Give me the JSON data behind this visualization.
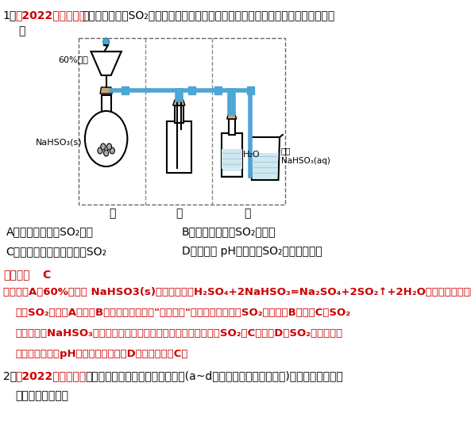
{
  "title_num": "1.",
  "title_bracket": "【2022年江苏卷】",
  "title_text": "实验室制取少量SO",
  "title_text2": "水溶液并探究其酸性，下列实验装置和操作不能达到实验目的的",
  "title_cont": "是",
  "option_A": "A．用装置甲制取SO",
  "option_A2": "气体",
  "option_B": "B．用装置乙制取SO",
  "option_B2": "水溶液",
  "option_C": "C．用装置丙吸收尾气中的SO",
  "option_C2": "",
  "option_D": "D．用干燥 pH试纸检验SO",
  "option_D2": "水溶液的酸性",
  "answer_label": "【答案】",
  "answer_val": "C",
  "analysis_label": "【解析】",
  "analysis_text": "A．60%硫酸和 NaHSO3(s)可发生反应：H",
  "bg_color": "#ffffff",
  "red_color": "#cc0000",
  "black_color": "#000000",
  "box_color": "#000000",
  "tube_color": "#4da6d4",
  "flask_color": "#f0f0f0",
  "dashed_color": "#888888"
}
